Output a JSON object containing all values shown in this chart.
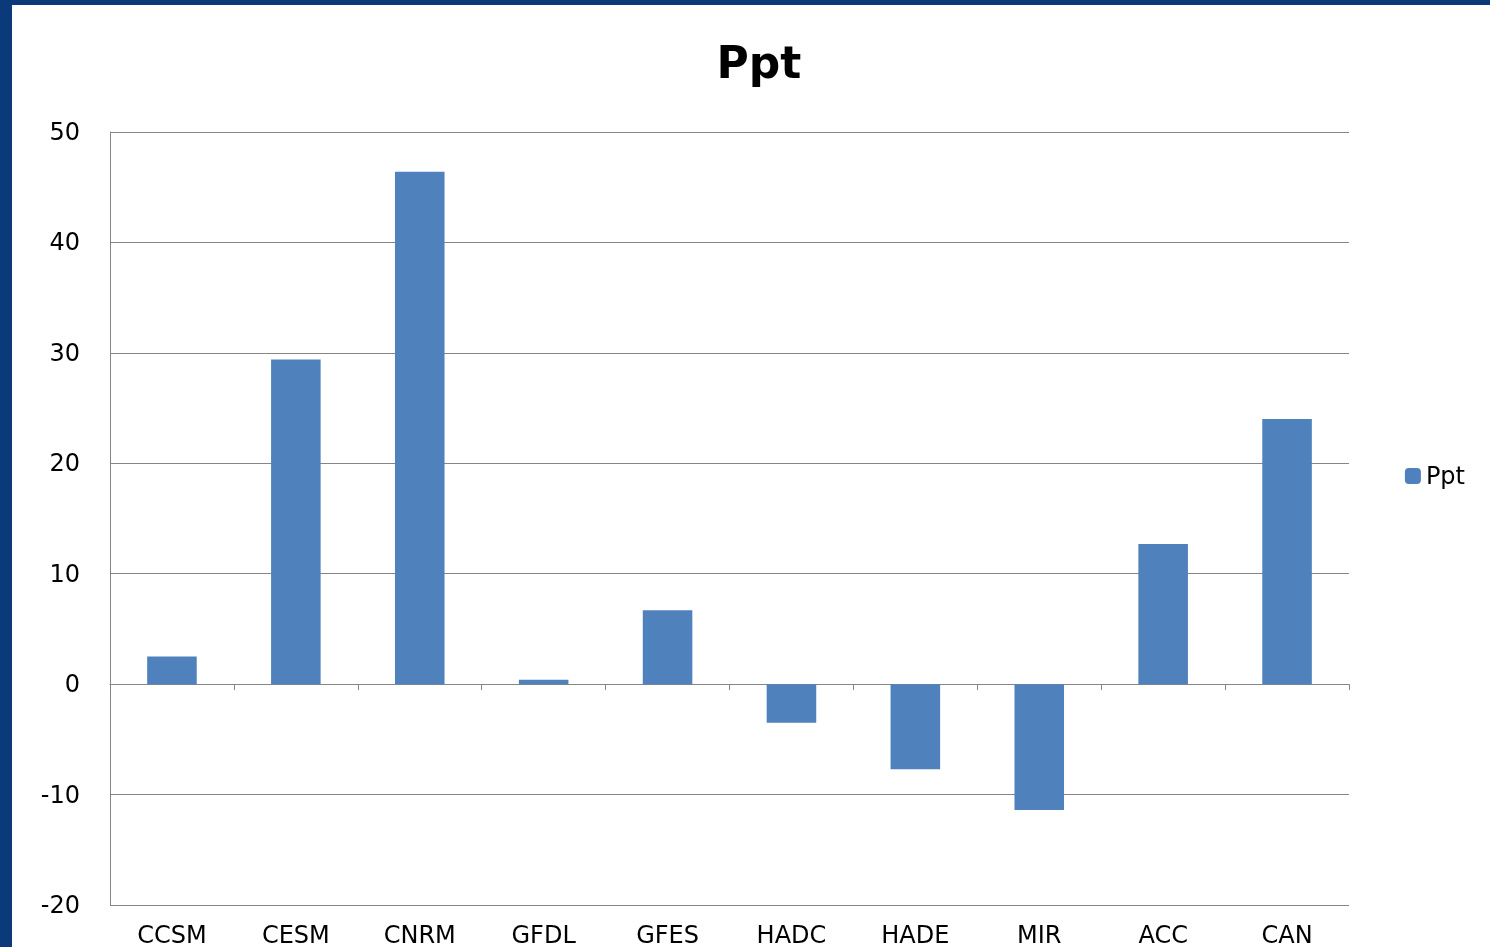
{
  "chart_data": {
    "type": "bar",
    "title": "Ppt",
    "categories": [
      "CCSM",
      "CESM",
      "CNRM",
      "GFDL",
      "GFES",
      "HADC",
      "HADE",
      "MIR",
      "ACC",
      "CAN"
    ],
    "series": [
      {
        "name": "Ppt",
        "color": "#4f81bd",
        "values": [
          2.5,
          29.4,
          46.4,
          0.4,
          6.7,
          -3.5,
          -7.7,
          -11.4,
          12.7,
          24.0
        ]
      }
    ],
    "ylim": [
      -20,
      50
    ],
    "yticks": [
      -20,
      -10,
      0,
      10,
      20,
      30,
      40,
      50
    ],
    "grid": "y",
    "legend": "right"
  }
}
